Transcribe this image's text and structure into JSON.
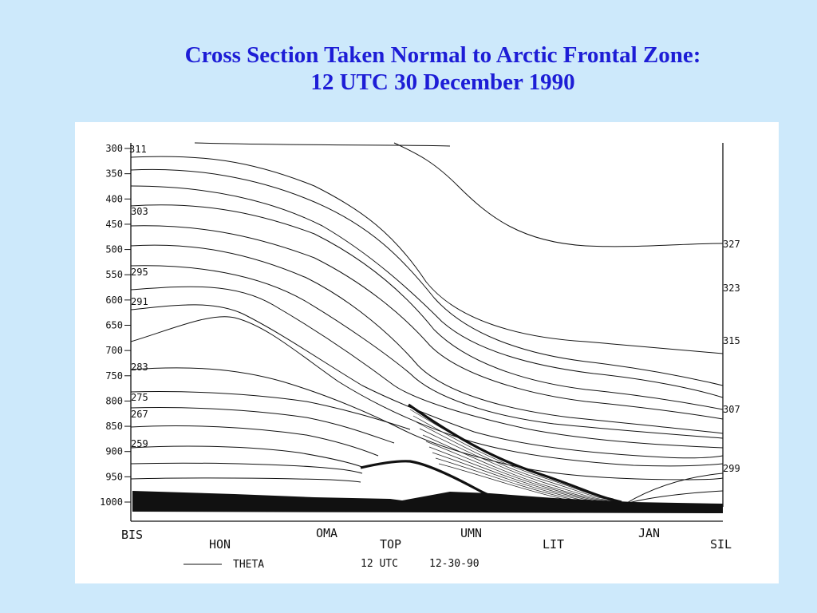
{
  "slide": {
    "title_line1": "Cross Section Taken Normal to Arctic Frontal Zone:",
    "title_line2": "12 UTC 30 December 1990"
  },
  "cross_section": {
    "pressure_ticks": [
      "300",
      "350",
      "400",
      "450",
      "500",
      "550",
      "600",
      "650",
      "700",
      "750",
      "800",
      "850",
      "900",
      "950",
      "1000"
    ],
    "left_isotherm_labels": [
      "311",
      "303",
      "295",
      "291",
      "283",
      "275",
      "267",
      "259"
    ],
    "right_isotherm_labels": [
      "327",
      "323",
      "315",
      "307",
      "299"
    ],
    "stations": [
      "BIS",
      "HON",
      "OMA",
      "TOP",
      "UMN",
      "LIT",
      "JAN",
      "SIL"
    ],
    "legend_label": "THETA",
    "time_label": "12 UTC",
    "date_label": "12-30-90"
  },
  "colors": {
    "background": "#cde9fb",
    "title": "#1d1dd6",
    "ink": "#111111"
  }
}
